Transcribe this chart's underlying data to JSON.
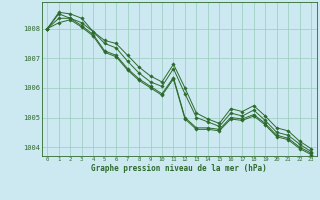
{
  "xlabel": "Graphe pression niveau de la mer (hPa)",
  "background_color": "#cce8f0",
  "grid_color": "#99ccbb",
  "line_color": "#2d6a2d",
  "ylim": [
    1003.7,
    1008.9
  ],
  "xlim": [
    -0.5,
    23.5
  ],
  "yticks": [
    1004,
    1005,
    1006,
    1007,
    1008
  ],
  "xticks": [
    0,
    1,
    2,
    3,
    4,
    5,
    6,
    7,
    8,
    9,
    10,
    11,
    12,
    13,
    14,
    15,
    16,
    17,
    18,
    19,
    20,
    21,
    22,
    23
  ],
  "series": [
    [
      1008.0,
      1008.55,
      1008.5,
      1008.35,
      1007.9,
      1007.6,
      1007.5,
      1007.1,
      1006.7,
      1006.4,
      1006.2,
      1006.8,
      1006.0,
      1005.15,
      1004.95,
      1004.8,
      1005.3,
      1005.2,
      1005.4,
      1005.05,
      1004.65,
      1004.55,
      1004.2,
      1003.95
    ],
    [
      1008.0,
      1008.5,
      1008.35,
      1008.2,
      1007.9,
      1007.5,
      1007.35,
      1006.9,
      1006.5,
      1006.2,
      1006.05,
      1006.65,
      1005.8,
      1005.0,
      1004.85,
      1004.7,
      1005.15,
      1005.05,
      1005.25,
      1004.9,
      1004.5,
      1004.4,
      1004.1,
      1003.85
    ],
    [
      1008.0,
      1008.35,
      1008.35,
      1008.1,
      1007.8,
      1007.25,
      1007.1,
      1006.65,
      1006.3,
      1006.05,
      1005.8,
      1006.35,
      1005.0,
      1004.65,
      1004.65,
      1004.6,
      1005.0,
      1004.95,
      1005.1,
      1004.8,
      1004.4,
      1004.3,
      1004.0,
      1003.8
    ],
    [
      1008.0,
      1008.2,
      1008.3,
      1008.05,
      1007.75,
      1007.2,
      1007.05,
      1006.6,
      1006.25,
      1006.0,
      1005.75,
      1006.3,
      1004.95,
      1004.6,
      1004.6,
      1004.55,
      1004.95,
      1004.9,
      1005.05,
      1004.75,
      1004.35,
      1004.25,
      1003.95,
      1003.75
    ]
  ]
}
